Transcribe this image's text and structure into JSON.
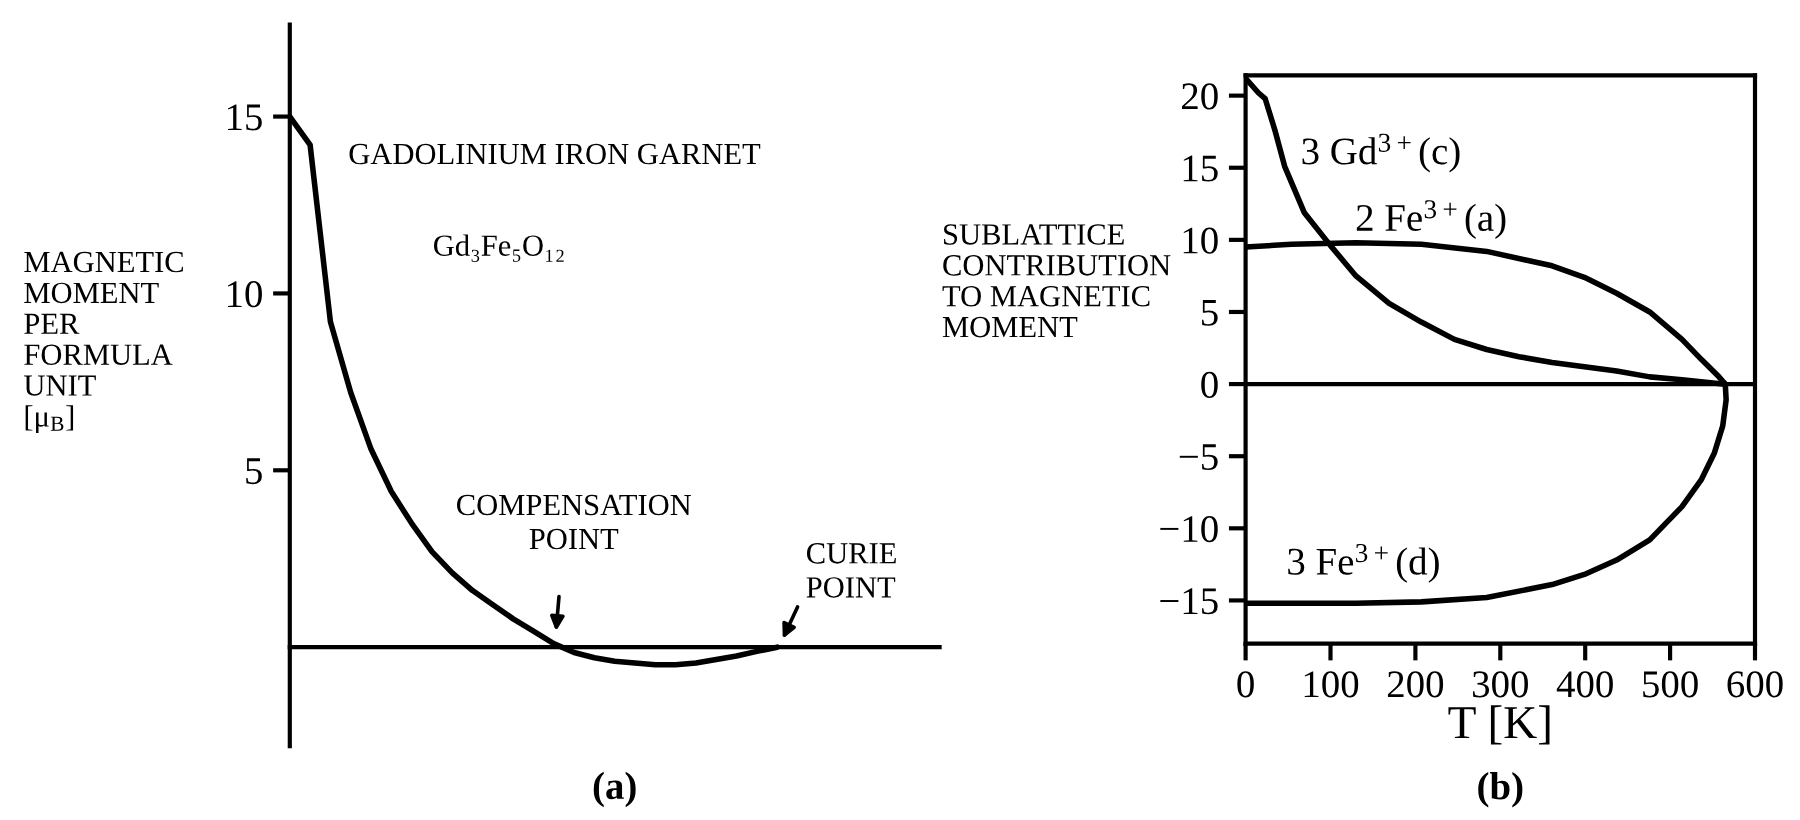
{
  "chart_data": [
    {
      "type": "line",
      "title": "(a)",
      "ylabel": "MAGNETIC\nMOMENT\nPER\nFORMULA\nUNIT\n[μ$_{B}$]",
      "annotations": [
        "GADOLINIUM IRON GARNET",
        "Gd₃Fe₅O₁₂",
        "COMPENSATION\nPOINT",
        "CURIE\nPOINT"
      ],
      "categories": [
        null,
        null,
        null,
        null,
        null,
        null,
        null,
        null,
        null,
        null,
        null,
        null,
        null,
        null,
        null,
        null,
        null,
        null,
        null,
        null,
        null,
        null,
        null,
        null,
        null,
        null,
        null,
        null,
        null,
        null,
        null,
        null,
        null
      ],
      "series": [
        {
          "color": "#000000",
          "values": [
            15,
            14.2,
            9.2,
            7.2,
            5.6,
            4.4,
            3.5,
            2.7,
            2.1,
            1.6,
            1.2,
            0.8,
            0.45,
            0.1,
            -0.15,
            -0.3,
            -0.4,
            -0.45,
            -0.5,
            -0.5,
            -0.45,
            -0.35,
            -0.25,
            -0.12,
            0,
            null,
            null,
            null,
            null,
            null,
            null,
            null,
            null
          ]
        }
      ],
      "ylim": [
        -2.8,
        17.6
      ],
      "yticks": [
        5,
        10,
        15
      ],
      "tick_labels": "y"
    },
    {
      "type": "line",
      "title": "(b)",
      "xlabel": "T [K]",
      "ylabel": "SUBLATTICE\nCONTRIBUTION\nTO MAGNETIC\nMOMENT",
      "series": [
        {
          "name": "3 Gd$^{3+}$(c)",
          "color": "#000000",
          "x": [
            0,
            15,
            23,
            35,
            46,
            69,
            100,
            130,
            169,
            207,
            246,
            284,
            322,
            361,
            399,
            437,
            476,
            514,
            562
          ],
          "values": [
            21.2,
            20.2,
            19.8,
            17.5,
            15.1,
            11.9,
            9.6,
            7.5,
            5.6,
            4.3,
            3.1,
            2.4,
            1.9,
            1.5,
            1.2,
            0.9,
            0.5,
            0.3,
            0
          ]
        },
        {
          "name": "2 Fe$^{3+}$(a)",
          "color": "#000000",
          "x": [
            0,
            54,
            130,
            207,
            284,
            361,
            399,
            437,
            476,
            514,
            537,
            556,
            565
          ],
          "values": [
            9.5,
            9.7,
            9.8,
            9.7,
            9.2,
            8.2,
            7.4,
            6.3,
            5.0,
            3.1,
            1.7,
            0.6,
            0
          ]
        },
        {
          "name": "3 Fe$^{3+}$(d)",
          "color": "#000000",
          "x": [
            565,
            566,
            562,
            552,
            537,
            514,
            476,
            437,
            399,
            361,
            284,
            207,
            130,
            0
          ],
          "values": [
            0,
            -1.1,
            -2.9,
            -4.8,
            -6.6,
            -8.5,
            -10.8,
            -12.2,
            -13.2,
            -13.9,
            -14.8,
            -15.1,
            -15.2,
            -15.2
          ]
        }
      ],
      "xlim": [
        0,
        600
      ],
      "xticks": [
        0,
        100,
        200,
        300,
        400,
        500,
        600
      ],
      "ylim": [
        -18,
        21.4
      ],
      "yticks": [
        {
          "value": -15,
          "label": "−15"
        },
        {
          "value": -10,
          "label": "−10"
        },
        {
          "value": -5,
          "label": "−5"
        },
        0,
        5,
        10,
        15,
        20
      ],
      "ref_lines": [
        {
          "axis": "y",
          "value": 0
        }
      ]
    }
  ]
}
